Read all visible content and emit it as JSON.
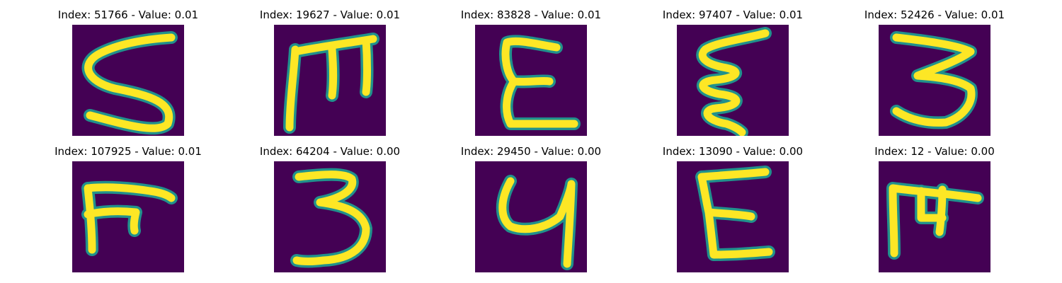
{
  "figure": {
    "colormap": "viridis",
    "colors": {
      "background": "#440154",
      "edge": "#21918c",
      "stroke": "#fde725"
    },
    "panels": [
      {
        "title": "Index: 51766 - Value: 0.01",
        "glyph": "S-like"
      },
      {
        "title": "Index: 19627 - Value: 0.01",
        "glyph": "M-like"
      },
      {
        "title": "Index: 83828 - Value: 0.01",
        "glyph": "E-like"
      },
      {
        "title": "Index: 97407 - Value: 0.01",
        "glyph": "Z-wave"
      },
      {
        "title": "Index: 52426 - Value: 0.01",
        "glyph": "3-like"
      },
      {
        "title": "Index: 107925 - Value: 0.01",
        "glyph": "F-hook"
      },
      {
        "title": "Index: 64204 - Value: 0.00",
        "glyph": "3-like"
      },
      {
        "title": "Index: 29450 - Value: 0.00",
        "glyph": "Y-like"
      },
      {
        "title": "Index: 13090 - Value: 0.00",
        "glyph": "E-like"
      },
      {
        "title": "Index: 12 - Value: 0.00",
        "glyph": "T-like"
      }
    ]
  }
}
